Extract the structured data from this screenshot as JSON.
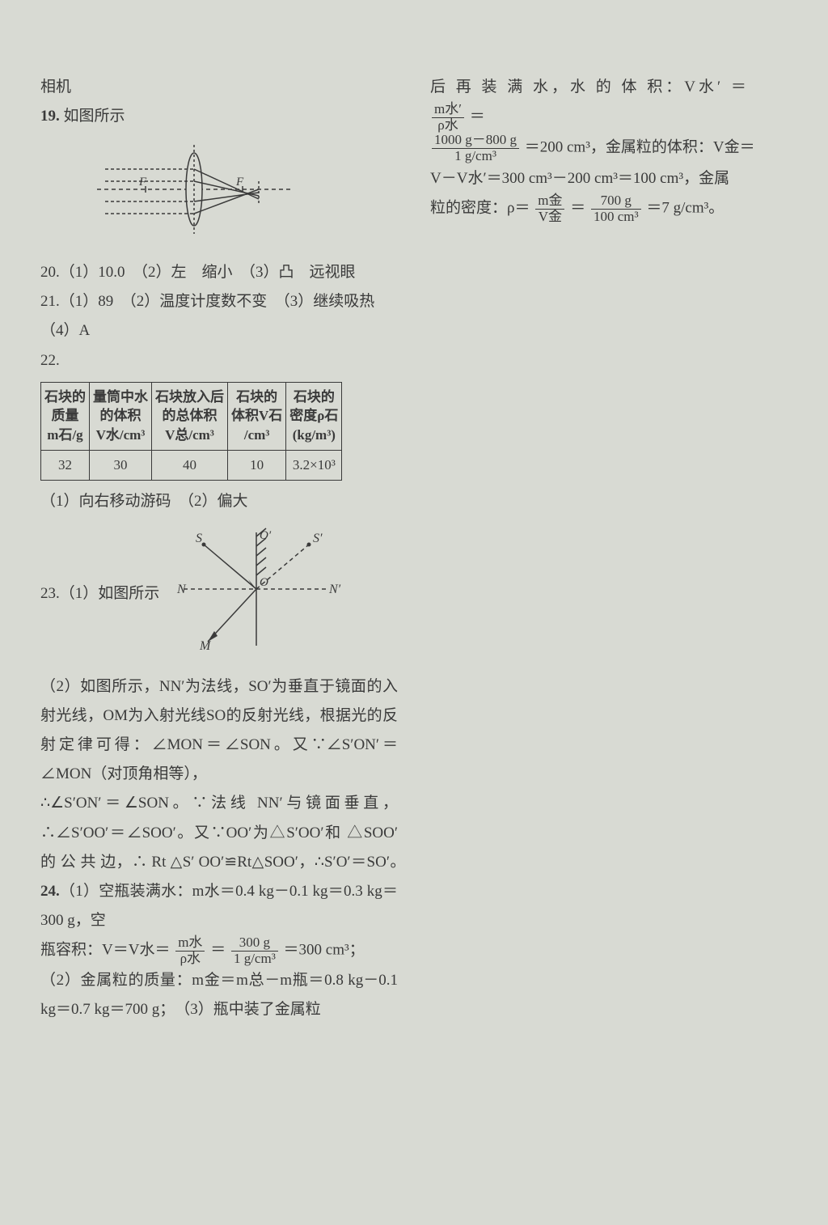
{
  "left": {
    "l1": "相机",
    "l2_bold": "19.",
    "l2_rest": " 如图所示",
    "diagram1": {
      "labels": {
        "F1": "F",
        "F2": "F"
      },
      "stroke": "#3a3a3a"
    },
    "l3": "20.（1）10.0　（2）左　缩小　（3）凸　远视眼",
    "l4": "21.（1）89　（2）温度计度数不变　（3）继续吸热",
    "l5": "（4）A",
    "l6": "22.",
    "table": {
      "headers": [
        "石块的\n质量\nm石/g",
        "量筒中水\n的体积\nV水/cm³",
        "石块放入后\n的总体积\nV总/cm³",
        "石块的\n体积V石\n/cm³",
        "石块的\n密度ρ石\n(kg/m³)"
      ],
      "row": [
        "32",
        "30",
        "40",
        "10",
        "3.2×10³"
      ]
    },
    "l7": "（1）向右移动游码　（2）偏大",
    "l8_left": "23.（1）如图所示",
    "diagram2": {
      "labels": {
        "S": "S",
        "Sp": "S′",
        "N": "N",
        "Np": "N′",
        "O": "O",
        "Op": "O′",
        "M": "M"
      },
      "stroke": "#3a3a3a"
    },
    "p1": "（2）如图所示，NN′为法线，SO′为垂直于镜面的入射光线，OM为入射光线SO的反射光线，根据光的反射定律可得：∠MON＝∠SON。又∵∠S′ON′＝∠MON（对顶角相等），",
    "p2a": "∴∠S′ON′＝∠SON。∵法线 NN′与镜面垂直，∴∠S′OO′＝∠SOO′。又∵OO′为△S′OO′和 △SOO′ 的 公 共 边，∴ Rt △S′ OO′≌Rt△SOO′，∴S′O′＝SO′。　",
    "p2b_bold": "24.",
    "p2b_rest": "（1）空瓶装满水：m水＝0.4 kg－0.1 kg＝0.3 kg＝300 g，空",
    "p3a": "瓶容积：V＝V水＝",
    "frac1": {
      "num": "m水",
      "den": "ρ水"
    },
    "p3b": "＝",
    "frac2": {
      "num": "300 g",
      "den": "1 g/cm³"
    },
    "p3c": "＝300 cm³；",
    "p4": "（2）金属粒的质量：m金＝m总－m瓶＝0.8 kg－0.1 kg＝0.7 kg＝700 g；　（3）瓶中装了金属粒"
  },
  "right": {
    "r1a": "后 再 装 满 水，水 的 体 积：V水′ ＝ ",
    "frac3": {
      "num": "m水′",
      "den": "ρ水"
    },
    "r1b": " ＝",
    "frac4": {
      "num": "1000 g－800 g",
      "den": "1 g/cm³"
    },
    "r2a": "＝200 cm³，金属粒的体积：V金＝",
    "r3": "V－V水′＝300 cm³－200 cm³＝100 cm³，金属",
    "r4a": "粒的密度：ρ＝",
    "frac5": {
      "num": "m金",
      "den": "V金"
    },
    "r4b": "＝",
    "frac6": {
      "num": "700 g",
      "den": "100 cm³"
    },
    "r4c": "＝7 g/cm³。"
  }
}
